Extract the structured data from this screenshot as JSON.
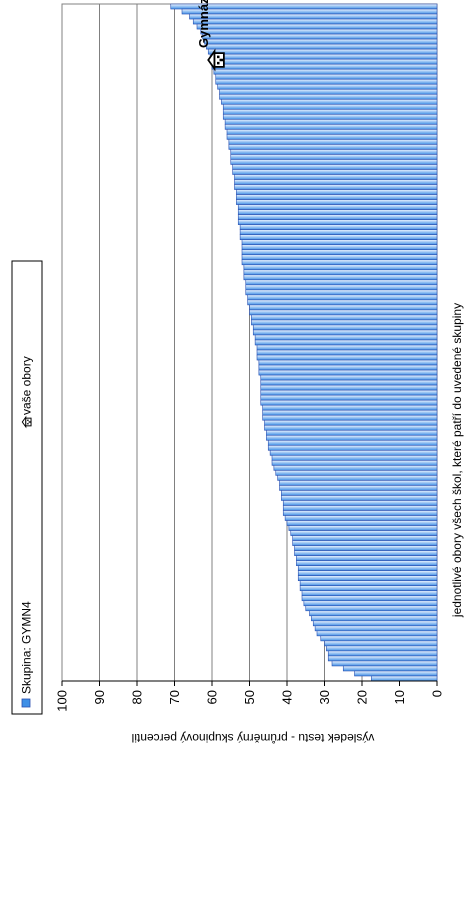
{
  "chart_data": {
    "type": "bar",
    "orientation": "horizontal",
    "legend": {
      "placement": "top",
      "items": [
        {
          "label": "Skupina: GYMN4",
          "marker": "filled-square"
        },
        {
          "label": "vaše obory",
          "marker": "school-icon"
        }
      ]
    },
    "xlabel": "jednotlivé obory všech škol, které patří do uvedené skupiny",
    "ylabel": "výsledek testu - průměrný skupinový percentil",
    "ylim": [
      0,
      100
    ],
    "yticks": [
      0,
      10,
      20,
      30,
      40,
      50,
      60,
      70,
      80,
      90,
      100
    ],
    "grid": true,
    "colors": {
      "bar_start": "#eef5ff",
      "bar_end": "#3f8fe6",
      "bar_outline": "#2a4fb0",
      "grid": "#808080"
    },
    "values": [
      17.5,
      22,
      25,
      28,
      29,
      29,
      29.5,
      30,
      31,
      32,
      32.5,
      33,
      33.5,
      34,
      35,
      35.5,
      36,
      36,
      36.5,
      36.5,
      37,
      37,
      37,
      37.5,
      37.5,
      38,
      38,
      38.5,
      38.5,
      39,
      39.5,
      40,
      40.5,
      41,
      41,
      41,
      41.5,
      41.5,
      42,
      42,
      42.5,
      43,
      43.5,
      44,
      44,
      44.5,
      45,
      45,
      45.5,
      45.5,
      46,
      46,
      46.5,
      46.5,
      46.5,
      47,
      47,
      47,
      47,
      47,
      47,
      47.5,
      47.5,
      47.5,
      48,
      48,
      48,
      48.5,
      48.5,
      49,
      49,
      49.5,
      49.5,
      50,
      50,
      50.5,
      50.5,
      51,
      51,
      51,
      51.5,
      51.5,
      51.5,
      52,
      52,
      52,
      52,
      52,
      52.5,
      52.5,
      52.5,
      53,
      53,
      53,
      53,
      53.5,
      53.5,
      53.5,
      54,
      54,
      54,
      54.5,
      54.5,
      55,
      55,
      55,
      55.5,
      55.5,
      56,
      56,
      56.5,
      56.5,
      57,
      57,
      57,
      57.5,
      58,
      58,
      58.5,
      59,
      59,
      59.5,
      60,
      60,
      60.5,
      61,
      61.5,
      62,
      62.5,
      63,
      64,
      65,
      66,
      68,
      71
    ],
    "annotations": [
      {
        "label": "Gymnázium",
        "icon": "school-icon",
        "target": 59
      }
    ]
  }
}
